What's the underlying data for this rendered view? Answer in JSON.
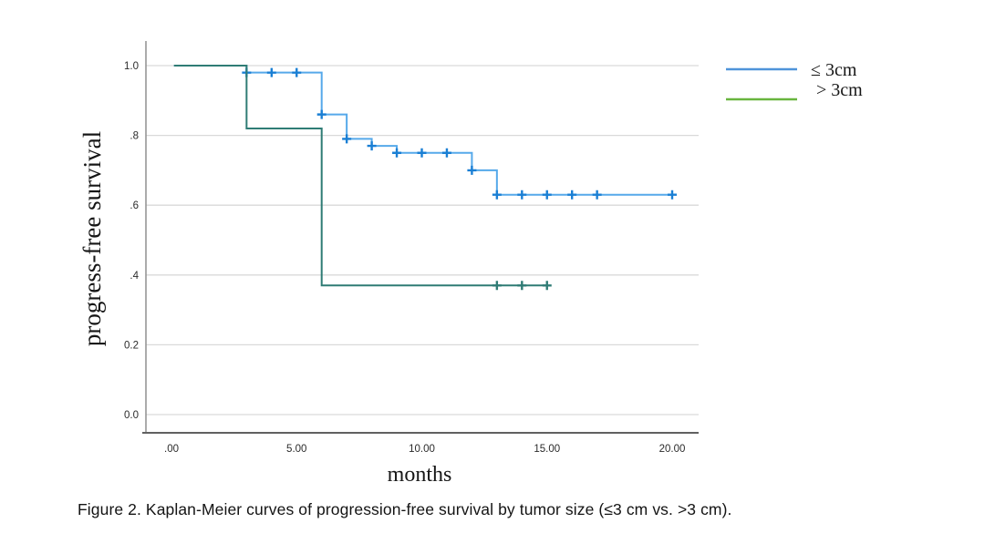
{
  "figure": {
    "caption": "Figure 2. Kaplan-Meier curves of progression-free survival by tumor size (≤3 cm vs. >3 cm)."
  },
  "chart_data": {
    "type": "line",
    "subtype": "kaplan-meier-step",
    "title": "",
    "xlabel": "months",
    "ylabel": "progress-free survival",
    "xlim": [
      0,
      20
    ],
    "ylim": [
      0,
      1.0
    ],
    "grid": true,
    "legend_position": "right",
    "x_ticks": [
      {
        "label": ".00",
        "value": 0
      },
      {
        "label": "5.00",
        "value": 5
      },
      {
        "label": "10.00",
        "value": 10
      },
      {
        "label": "15.00",
        "value": 15
      },
      {
        "label": "20.00",
        "value": 20
      }
    ],
    "y_ticks": [
      {
        "label": "1.0",
        "value": 1.0
      },
      {
        "label": ".8",
        "value": 0.8
      },
      {
        "label": ".6",
        "value": 0.6
      },
      {
        "label": ".4",
        "value": 0.4
      },
      {
        "label": "0.2",
        "value": 0.2
      },
      {
        "label": "0.0",
        "value": 0.0
      }
    ],
    "series": [
      {
        "name": "≤ 3cm",
        "line_color": "#56a9ea",
        "censor_color": "#1a7fd4",
        "legend_color": "#4f94d9",
        "start_x": 0.1,
        "end_x": 20,
        "steps": [
          [
            0,
            1.0
          ],
          [
            3,
            0.98
          ],
          [
            6,
            0.86
          ],
          [
            7,
            0.79
          ],
          [
            8,
            0.77
          ],
          [
            9,
            0.75
          ],
          [
            12,
            0.7
          ],
          [
            13,
            0.63
          ]
        ],
        "censors": [
          [
            3,
            0.98
          ],
          [
            4,
            0.98
          ],
          [
            5,
            0.98
          ],
          [
            6,
            0.86
          ],
          [
            7,
            0.79
          ],
          [
            8,
            0.77
          ],
          [
            9,
            0.75
          ],
          [
            10,
            0.75
          ],
          [
            11,
            0.75
          ],
          [
            12,
            0.7
          ],
          [
            13,
            0.63
          ],
          [
            14,
            0.63
          ],
          [
            15,
            0.63
          ],
          [
            16,
            0.63
          ],
          [
            17,
            0.63
          ],
          [
            20,
            0.63
          ]
        ]
      },
      {
        "name": "> 3cm",
        "line_color": "#2f7c75",
        "censor_color": "#2f7c75",
        "legend_color": "#68b53e",
        "start_x": 0.1,
        "end_x": 15,
        "steps": [
          [
            0,
            1.0
          ],
          [
            3,
            0.82
          ],
          [
            6,
            0.37
          ]
        ],
        "censors": [
          [
            13,
            0.37
          ],
          [
            14,
            0.37
          ],
          [
            15,
            0.37
          ]
        ]
      }
    ],
    "style": {
      "gridline_color": "#d9d9d9",
      "axis_line_color": "#8f8f8f",
      "bottom_axis_color": "#616161",
      "tick_label_color": "#2b2b2b"
    }
  }
}
